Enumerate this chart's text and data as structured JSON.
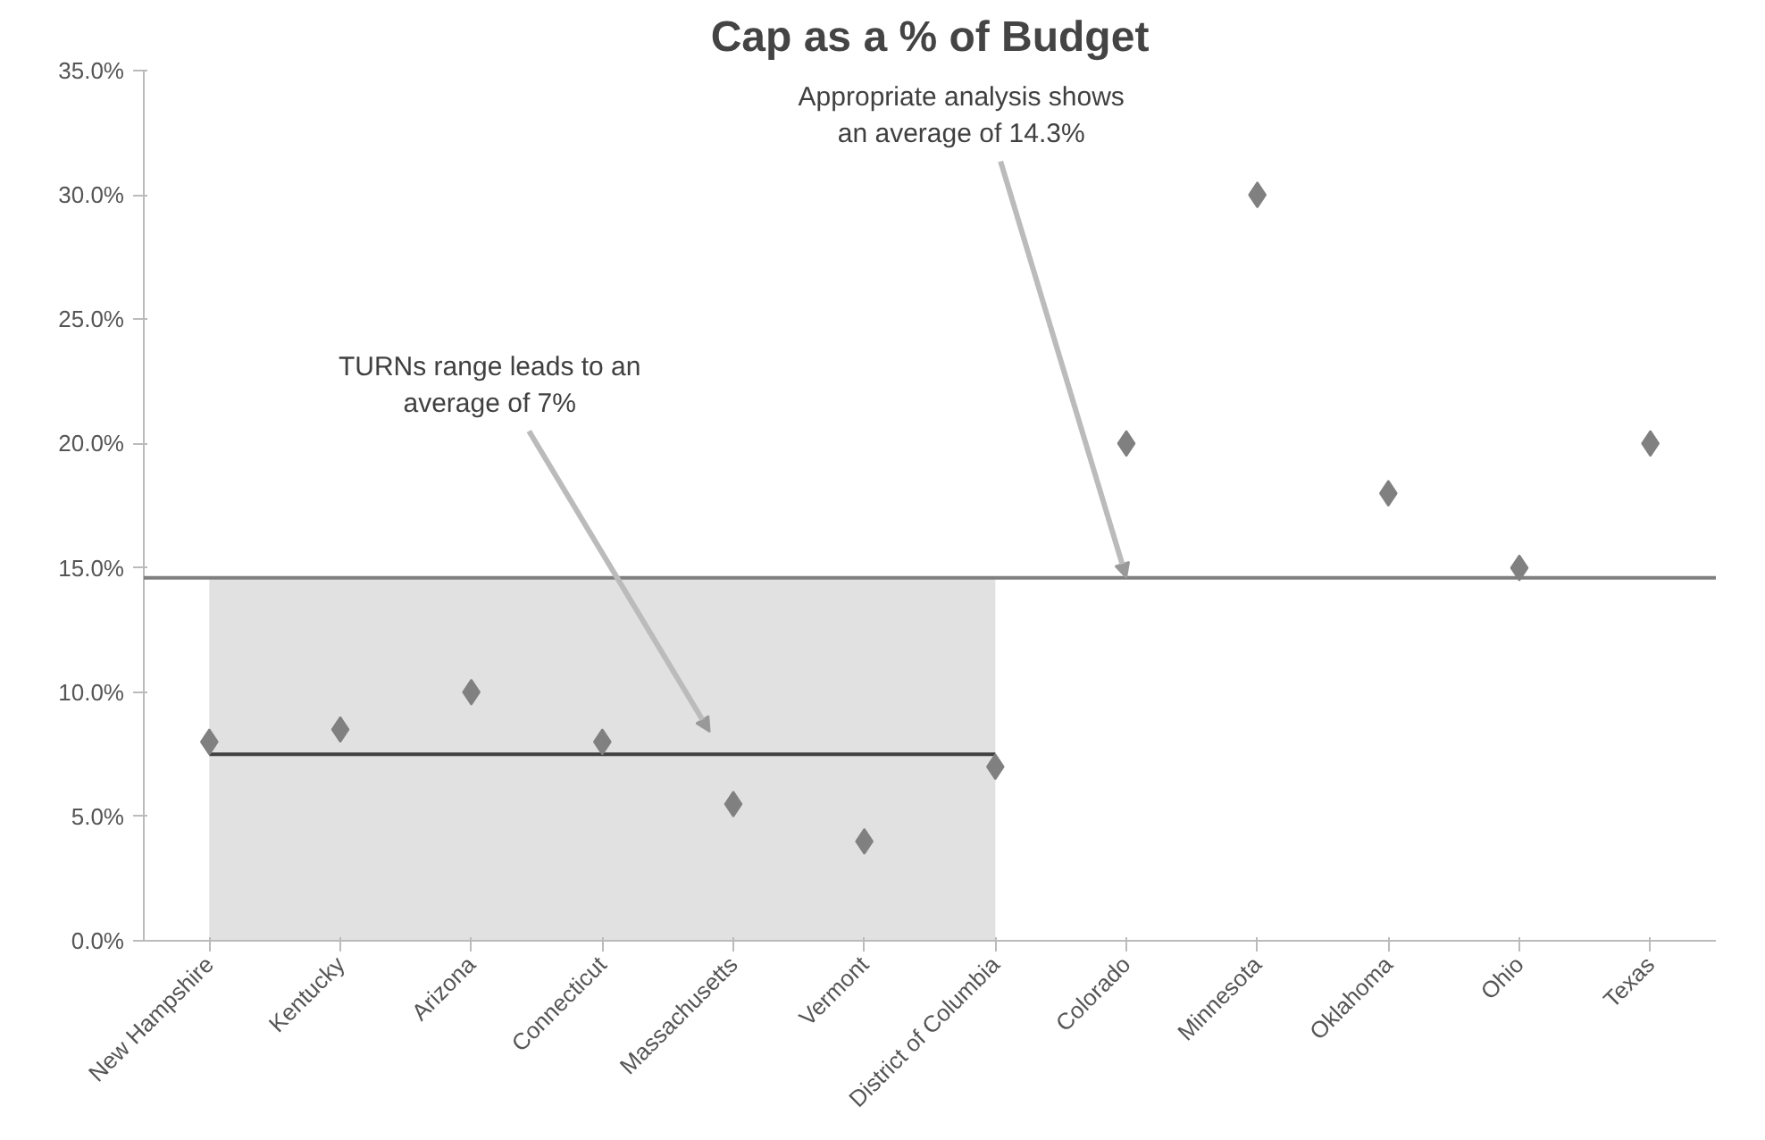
{
  "chart_data": {
    "type": "scatter",
    "title": "Cap as a % of Budget",
    "categories": [
      "New Hampshire",
      "Kentucky",
      "Arizona",
      "Connecticut",
      "Massachusetts",
      "Vermont",
      "District of Columbia",
      "Colorado",
      "Minnesota",
      "Oklahoma",
      "Ohio",
      "Texas"
    ],
    "series": [
      {
        "type": "area",
        "color": "#d9d9d9",
        "values": [
          14.6,
          14.6,
          14.6,
          14.6,
          14.6,
          14.6,
          14.6,
          null,
          null,
          null,
          null,
          null
        ]
      },
      {
        "type": "line",
        "color": "#404040",
        "values": [
          7.5,
          7.5,
          7.5,
          7.5,
          7.5,
          7.5,
          7.5,
          null,
          null,
          null,
          null,
          null
        ]
      },
      {
        "color": "#808080",
        "marker": "diamond",
        "values": [
          8,
          8.5,
          10,
          8,
          5.5,
          4,
          7,
          20,
          30,
          18,
          15,
          20
        ]
      }
    ],
    "ylim": [
      0,
      35
    ],
    "yticks": [
      {
        "value": 0,
        "label": "0.0%"
      },
      {
        "value": 5,
        "label": "5.0%"
      },
      {
        "value": 10,
        "label": "10.0%"
      },
      {
        "value": 15,
        "label": "15.0%"
      },
      {
        "value": 20,
        "label": "20.0%"
      },
      {
        "value": 25,
        "label": "25.0%"
      },
      {
        "value": 30,
        "label": "30.0%"
      },
      {
        "value": 35,
        "label": "35.0%"
      }
    ],
    "ref_lines": [
      {
        "axis": "y",
        "value": 14.6,
        "color": "#808080"
      }
    ],
    "annotations": [
      "TURNs range leads to an average of 7%",
      {
        "text": "Appropriate analysis shows an average of 14.3%",
        "x": "Colorado",
        "y": 14.6
      }
    ],
    "grid": false
  }
}
